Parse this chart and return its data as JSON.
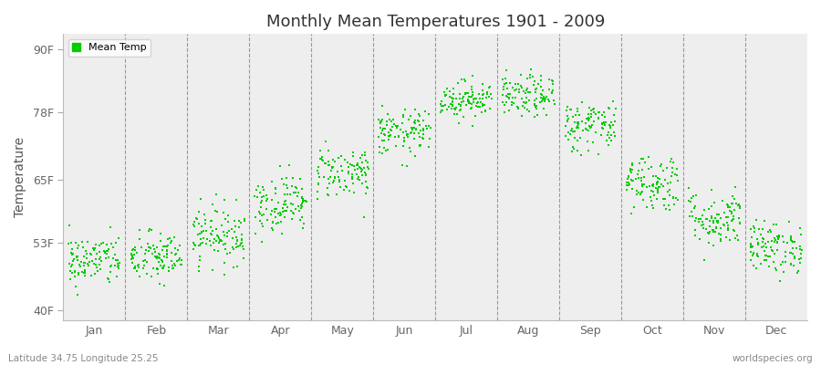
{
  "title": "Monthly Mean Temperatures 1901 - 2009",
  "ylabel": "Temperature",
  "yticks": [
    40,
    53,
    65,
    78,
    90
  ],
  "ytick_labels": [
    "40F",
    "53F",
    "65F",
    "78F",
    "90F"
  ],
  "ylim": [
    38,
    93
  ],
  "months": [
    "Jan",
    "Feb",
    "Mar",
    "Apr",
    "May",
    "Jun",
    "Jul",
    "Aug",
    "Sep",
    "Oct",
    "Nov",
    "Dec"
  ],
  "dot_color": "#00cc00",
  "plot_bg_color": "#eeeeee",
  "fig_bg_color": "#ffffff",
  "subtitle_left": "Latitude 34.75 Longitude 25.25",
  "subtitle_right": "worldspecies.org",
  "legend_label": "Mean Temp",
  "n_years": 109,
  "monthly_means_F": [
    49.5,
    50.0,
    54.5,
    60.5,
    66.5,
    74.0,
    80.5,
    81.0,
    75.5,
    64.5,
    57.5,
    52.0
  ],
  "monthly_stds_F": [
    2.5,
    2.5,
    2.8,
    2.8,
    2.5,
    2.2,
    1.8,
    2.0,
    2.5,
    2.8,
    2.8,
    2.5
  ],
  "seed": 42
}
